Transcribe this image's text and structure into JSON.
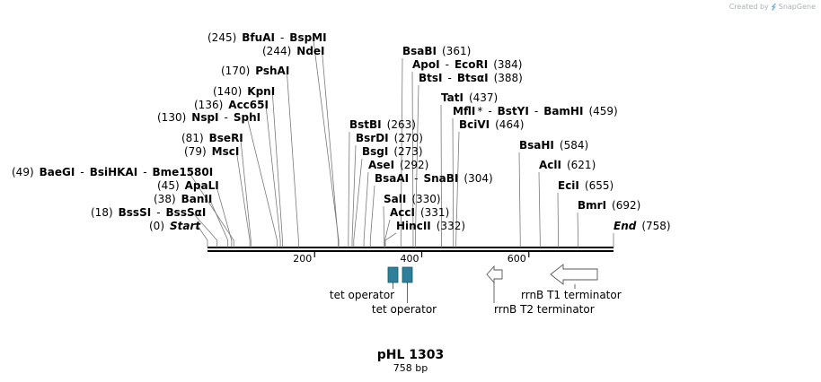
{
  "credit": {
    "prefix": "Created by",
    "brand": "SnapGene"
  },
  "plasmid": {
    "name": "pHL 1303",
    "length_label": "758 bp",
    "length": 758
  },
  "axis": {
    "ticks": [
      {
        "pos": 200,
        "label": "200"
      },
      {
        "pos": 400,
        "label": "400"
      },
      {
        "pos": 600,
        "label": "600"
      }
    ]
  },
  "sites": [
    {
      "id": "bfuai",
      "pos": "(245)",
      "name": "BfuAI",
      "sep": "-",
      "name2": "BspMI",
      "bp": 245
    },
    {
      "id": "ndei",
      "pos": "(244)",
      "name": "NdeI",
      "bp": 244
    },
    {
      "id": "pshai",
      "pos": "(170)",
      "name": "PshAI",
      "bp": 170
    },
    {
      "id": "kpni",
      "pos": "(140)",
      "name": "KpnI",
      "bp": 140
    },
    {
      "id": "acc65i",
      "pos": "(136)",
      "name": "Acc65I",
      "bp": 136
    },
    {
      "id": "nspi",
      "pos": "(130)",
      "name": "NspI",
      "sep": "-",
      "name2": "SphI",
      "bp": 130
    },
    {
      "id": "bseri",
      "pos": "(81)",
      "name": "BseRI",
      "bp": 81
    },
    {
      "id": "msci",
      "pos": "(79)",
      "name": "MscI",
      "bp": 79
    },
    {
      "id": "baegi",
      "pos": "(49)",
      "name": "BaeGI",
      "sep": "-",
      "name2": "BsiHKAI",
      "sep2": "-",
      "name3": "Bme1580I",
      "bp": 49
    },
    {
      "id": "apali",
      "pos": "(45)",
      "name": "ApaLI",
      "bp": 45
    },
    {
      "id": "banii",
      "pos": "(38)",
      "name": "BanII",
      "bp": 38
    },
    {
      "id": "bsssi",
      "pos": "(18)",
      "name": "BssSI",
      "sep": "-",
      "name2": "BssSαI",
      "bp": 18
    },
    {
      "id": "start",
      "pos": "(0)",
      "name": "Start",
      "bp": 0
    },
    {
      "id": "bsabi",
      "pos": "(361)",
      "name": "BsaBI",
      "bp": 361
    },
    {
      "id": "apoi",
      "pos": "(384)",
      "name": "ApoI",
      "sep": "-",
      "name2": "EcoRI",
      "bp": 384
    },
    {
      "id": "btsi",
      "pos": "(388)",
      "name": "BtsI",
      "sep": "-",
      "name2": "BtsαI",
      "bp": 388
    },
    {
      "id": "tati",
      "pos": "(437)",
      "name": "TatI",
      "bp": 437
    },
    {
      "id": "mfli",
      "pos": "(459)",
      "name": "MflI",
      "star": "*",
      "sep": "-",
      "name2": "BstYI",
      "sep2": "-",
      "name3": "BamHI",
      "bp": 459
    },
    {
      "id": "bcivi",
      "pos": "(464)",
      "name": "BciVI",
      "bp": 464
    },
    {
      "id": "bstbi",
      "pos": "(263)",
      "name": "BstBI",
      "bp": 263
    },
    {
      "id": "bsrdi",
      "pos": "(270)",
      "name": "BsrDI",
      "bp": 270
    },
    {
      "id": "bsgi",
      "pos": "(273)",
      "name": "BsgI",
      "bp": 273
    },
    {
      "id": "asei",
      "pos": "(292)",
      "name": "AseI",
      "bp": 292
    },
    {
      "id": "bsaai",
      "pos": "(304)",
      "name": "BsaAI",
      "sep": "-",
      "name2": "SnaBI",
      "bp": 304
    },
    {
      "id": "sali",
      "pos": "(330)",
      "name": "SalI",
      "bp": 330
    },
    {
      "id": "acci",
      "pos": "(331)",
      "name": "AccI",
      "bp": 331
    },
    {
      "id": "hincii",
      "pos": "(332)",
      "name": "HincII",
      "bp": 332
    },
    {
      "id": "bsahi",
      "pos": "(584)",
      "name": "BsaHI",
      "bp": 584
    },
    {
      "id": "acli",
      "pos": "(621)",
      "name": "AclI",
      "bp": 621
    },
    {
      "id": "ecii",
      "pos": "(655)",
      "name": "EciI",
      "bp": 655
    },
    {
      "id": "bmri",
      "pos": "(692)",
      "name": "BmrI",
      "bp": 692
    },
    {
      "id": "end",
      "pos": "(758)",
      "name": "End",
      "bp": 758
    }
  ],
  "features": [
    {
      "id": "tet1",
      "name": "tet operator",
      "type": "box",
      "color": "#2e7f99"
    },
    {
      "id": "tet2",
      "name": "tet operator",
      "type": "box",
      "color": "#2e7f99"
    },
    {
      "id": "rrnbt2",
      "name": "rrnB T2 terminator",
      "type": "arrow",
      "direction": "left",
      "color": "#ffffff"
    },
    {
      "id": "rrnbt1",
      "name": "rrnB T1 terminator",
      "type": "arrow",
      "direction": "left",
      "color": "#ffffff"
    }
  ]
}
